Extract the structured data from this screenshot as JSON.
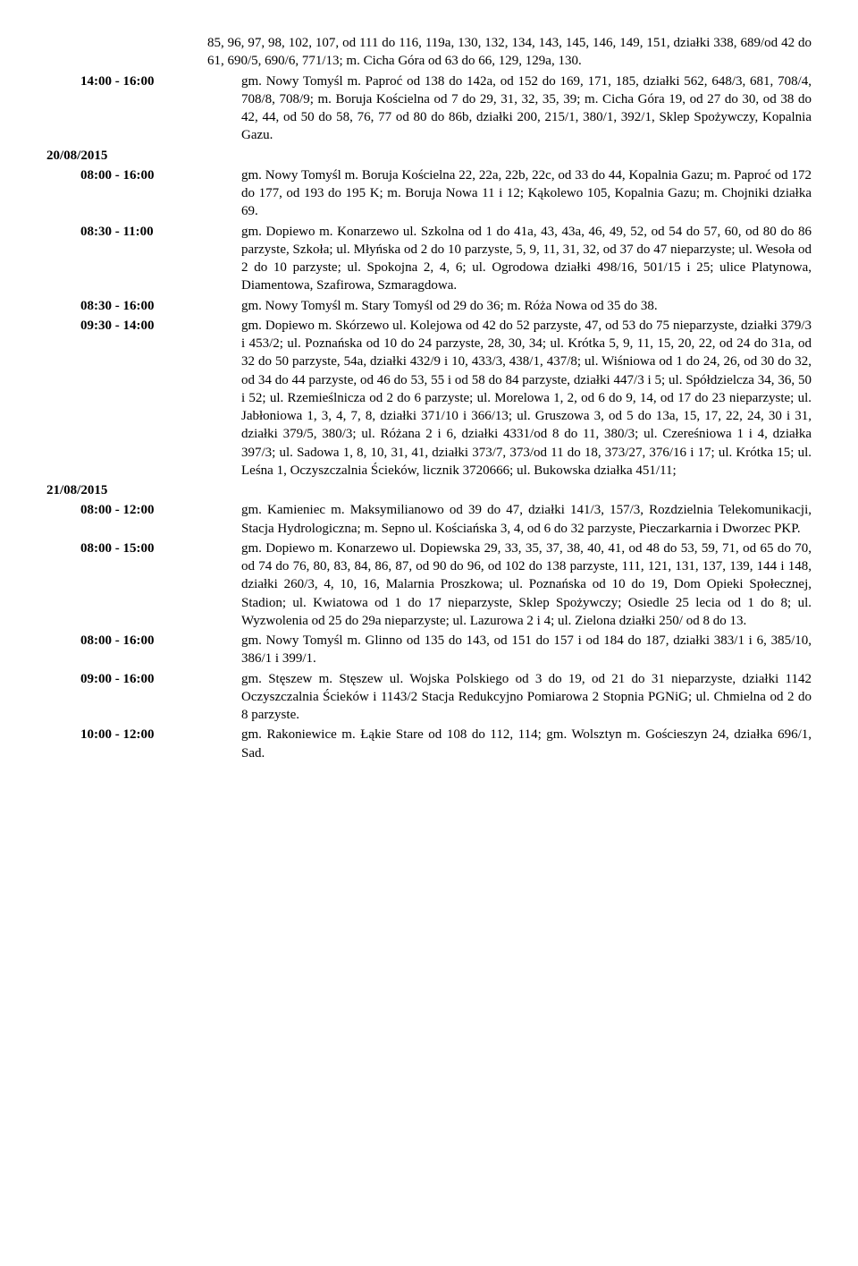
{
  "blocks": [
    {
      "type": "continuation",
      "text": "85, 96, 97, 98, 102, 107, od 111 do 116, 119a, 130, 132, 134, 143, 145, 146, 149, 151, działki 338, 689/od 42 do 61, 690/5, 690/6, 771/13; m. Cicha Góra od 63 do 66, 129, 129a, 130."
    },
    {
      "type": "entry",
      "time": "14:00 - 16:00",
      "text": "gm. Nowy Tomyśl m. Paproć od 138 do 142a, od 152 do 169, 171, 185, działki 562, 648/3, 681, 708/4, 708/8, 708/9; m. Boruja Kościelna od 7 do 29, 31, 32, 35, 39; m. Cicha Góra 19, od 27 do 30, od 38 do 42, 44, od 50 do 58, 76, 77 od 80 do 86b, działki 200, 215/1, 380/1, 392/1, Sklep Spożywczy, Kopalnia Gazu."
    },
    {
      "type": "date",
      "text": "20/08/2015"
    },
    {
      "type": "entry",
      "time": "08:00 - 16:00",
      "text": "gm. Nowy Tomyśl m. Boruja Kościelna 22, 22a, 22b, 22c, od 33 do 44, Kopalnia Gazu; m. Paproć od 172 do 177, od 193 do 195 K; m. Boruja Nowa 11 i 12; Kąkolewo 105, Kopalnia Gazu; m. Chojniki działka 69."
    },
    {
      "type": "entry",
      "time": "08:30 - 11:00",
      "text": "gm. Dopiewo m. Konarzewo ul. Szkolna od 1 do 41a, 43, 43a, 46, 49, 52, od 54 do 57, 60, od 80 do 86 parzyste, Szkoła; ul. Młyńska od 2 do 10 parzyste, 5, 9, 11, 31, 32, od 37 do 47 nieparzyste; ul. Wesoła od 2 do 10 parzyste; ul. Spokojna 2, 4, 6; ul. Ogrodowa działki 498/16, 501/15 i 25; ulice Platynowa, Diamentowa, Szafirowa, Szmaragdowa."
    },
    {
      "type": "entry",
      "time": "08:30 - 16:00",
      "text": "gm. Nowy Tomyśl m. Stary Tomyśl od 29 do 36; m. Róża Nowa od 35 do 38."
    },
    {
      "type": "entry",
      "time": "09:30 - 14:00",
      "text": "gm. Dopiewo m. Skórzewo ul. Kolejowa od 42 do 52 parzyste, 47, od 53 do 75 nieparzyste, działki 379/3 i 453/2; ul. Poznańska od 10 do 24 parzyste, 28, 30, 34; ul. Krótka 5, 9, 11, 15, 20, 22, od 24 do 31a, od 32 do 50 parzyste, 54a, działki 432/9 i 10, 433/3, 438/1, 437/8; ul. Wiśniowa od 1 do 24, 26, od 30 do 32, od 34 do 44 parzyste, od 46 do 53, 55 i od 58 do 84 parzyste, działki 447/3 i 5; ul. Spółdzielcza 34, 36, 50 i 52; ul. Rzemieślnicza od 2 do 6 parzyste; ul. Morelowa 1, 2, od 6 do 9, 14, od 17 do 23 nieparzyste; ul. Jabłoniowa 1, 3, 4, 7, 8, działki 371/10 i 366/13; ul. Gruszowa 3, od 5 do 13a, 15, 17, 22, 24, 30 i 31, działki 379/5, 380/3; ul. Różana 2 i 6, działki 4331/od 8 do 11, 380/3; ul. Czereśniowa 1 i 4, działka 397/3; ul. Sadowa 1, 8, 10, 31, 41, działki 373/7, 373/od 11 do 18, 373/27, 376/16 i 17; ul. Krótka 15; ul. Leśna 1, Oczyszczalnia Ścieków, licznik 3720666; ul. Bukowska działka 451/11;"
    },
    {
      "type": "date",
      "text": "21/08/2015"
    },
    {
      "type": "entry",
      "time": "08:00 - 12:00",
      "text": "gm. Kamieniec m. Maksymilianowo od 39 do 47, działki 141/3, 157/3, Rozdzielnia Telekomunikacji, Stacja Hydrologiczna; m. Sepno ul. Kościańska 3, 4, od 6 do 32 parzyste, Pieczarkarnia i Dworzec PKP."
    },
    {
      "type": "entry",
      "time": "08:00 - 15:00",
      "text": "gm. Dopiewo m. Konarzewo ul. Dopiewska 29, 33, 35, 37, 38, 40, 41, od 48 do 53, 59, 71, od 65 do 70, od 74 do 76, 80, 83, 84, 86, 87, od 90 do 96, od 102 do 138 parzyste, 111, 121, 131, 137, 139, 144 i 148, działki 260/3, 4, 10, 16, Malarnia Proszkowa; ul. Poznańska od 10 do 19, Dom Opieki Społecznej, Stadion; ul. Kwiatowa od 1 do 17 nieparzyste, Sklep Spożywczy; Osiedle 25 lecia od 1 do 8; ul. Wyzwolenia od 25 do 29a nieparzyste; ul. Lazurowa 2 i 4; ul. Zielona działki 250/ od 8 do 13."
    },
    {
      "type": "entry",
      "time": "08:00 - 16:00",
      "text": "gm. Nowy Tomyśl m. Glinno od 135 do 143, od 151 do 157 i od 184 do 187, działki 383/1 i 6, 385/10, 386/1 i 399/1."
    },
    {
      "type": "entry",
      "time": "09:00 - 16:00",
      "text": "gm. Stęszew m. Stęszew ul. Wojska Polskiego od 3 do 19, od 21 do 31 nieparzyste, działki 1142 Oczyszczalnia Ścieków i 1143/2 Stacja Redukcyjno Pomiarowa 2 Stopnia PGNiG; ul. Chmielna od 2 do 8 parzyste."
    },
    {
      "type": "entry",
      "time": "10:00 - 12:00",
      "text": "gm. Rakoniewice m. Łąkie Stare od 108 do 112, 114; gm. Wolsztyn m. Gościeszyn 24, działka 696/1, Sad."
    }
  ]
}
